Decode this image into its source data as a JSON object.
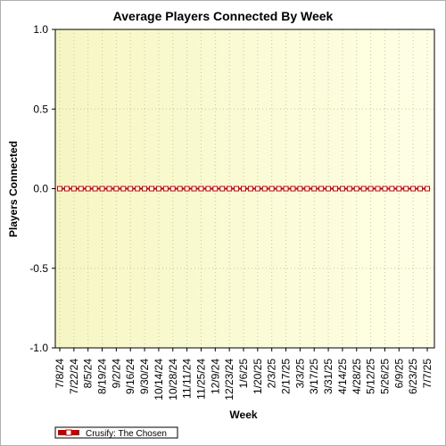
{
  "chart_data": {
    "type": "line",
    "title": "Average Players Connected By Week",
    "xlabel": "Week",
    "ylabel": "Players Connected",
    "ylim": [
      -1.0,
      1.0
    ],
    "y_ticks": [
      "1.0",
      "0.5",
      "0.0",
      "-0.5",
      "-1.0"
    ],
    "y_tick_values": [
      1.0,
      0.5,
      0.0,
      -0.5,
      -1.0
    ],
    "grid": true,
    "legend_position": "bottom-left",
    "x_tick_labels": [
      "7/8/24",
      "7/22/24",
      "8/5/24",
      "8/19/24",
      "9/2/24",
      "9/16/24",
      "9/30/24",
      "10/14/24",
      "10/28/24",
      "11/11/24",
      "11/25/24",
      "12/9/24",
      "12/23/24",
      "1/6/25",
      "1/20/25",
      "2/3/25",
      "2/17/25",
      "3/3/25",
      "3/17/25",
      "3/31/25",
      "4/14/25",
      "4/28/25",
      "5/12/25",
      "5/26/25",
      "6/9/25",
      "6/23/25",
      "7/7/25"
    ],
    "x": [
      "7/8/24",
      "7/15/24",
      "7/22/24",
      "7/29/24",
      "8/5/24",
      "8/12/24",
      "8/19/24",
      "8/26/24",
      "9/2/24",
      "9/9/24",
      "9/16/24",
      "9/23/24",
      "9/30/24",
      "10/7/24",
      "10/14/24",
      "10/21/24",
      "10/28/24",
      "11/4/24",
      "11/11/24",
      "11/18/24",
      "11/25/24",
      "12/2/24",
      "12/9/24",
      "12/16/24",
      "12/23/24",
      "12/30/24",
      "1/6/25",
      "1/13/25",
      "1/20/25",
      "1/27/25",
      "2/3/25",
      "2/10/25",
      "2/17/25",
      "2/24/25",
      "3/3/25",
      "3/10/25",
      "3/17/25",
      "3/24/25",
      "3/31/25",
      "4/7/25",
      "4/14/25",
      "4/21/25",
      "4/28/25",
      "5/5/25",
      "5/12/25",
      "5/19/25",
      "5/26/25",
      "6/2/25",
      "6/9/25",
      "6/16/25",
      "6/23/25",
      "6/30/25",
      "7/7/25"
    ],
    "series": [
      {
        "name": "Crusify: The Chosen",
        "color": "#c00000",
        "values": [
          0,
          0,
          0,
          0,
          0,
          0,
          0,
          0,
          0,
          0,
          0,
          0,
          0,
          0,
          0,
          0,
          0,
          0,
          0,
          0,
          0,
          0,
          0,
          0,
          0,
          0,
          0,
          0,
          0,
          0,
          0,
          0,
          0,
          0,
          0,
          0,
          0,
          0,
          0,
          0,
          0,
          0,
          0,
          0,
          0,
          0,
          0,
          0,
          0,
          0,
          0,
          0,
          0
        ]
      }
    ]
  },
  "colors": {
    "plot_bg_left": "#f7f7c6",
    "plot_bg_right": "#ffffe4",
    "grid": "#c8c8a0",
    "series": "#c00000"
  }
}
